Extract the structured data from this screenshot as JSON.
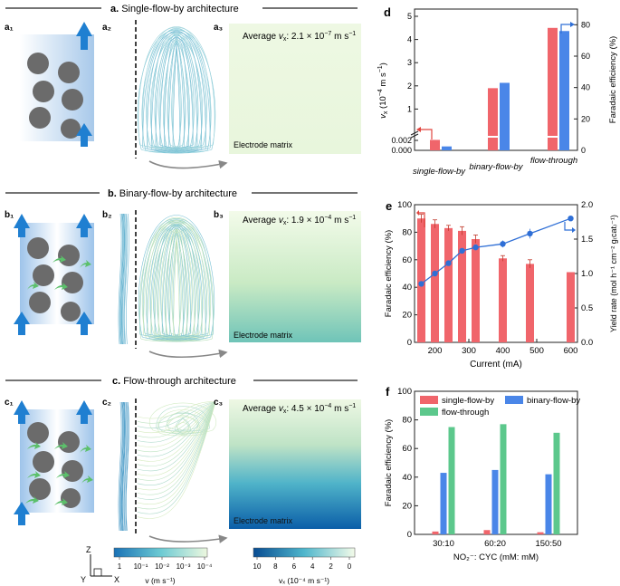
{
  "rows": [
    {
      "letter": "a.",
      "title": "Single-flow-by architecture",
      "sub1": "a₁",
      "sub2": "a₂",
      "sub3": "a₃",
      "avg_prefix": "Average ",
      "avg_symbol": "v",
      "avg_sub": "x",
      "avg_mid": ": 2.1 × 10",
      "avg_exp": "−7",
      "avg_unit": " m s",
      "avg_unit_exp": "−1",
      "matrix_label": "Electrode matrix"
    },
    {
      "letter": "b.",
      "title": "Binary-flow-by architecture",
      "sub1": "b₁",
      "sub2": "b₂",
      "sub3": "b₃",
      "avg_prefix": "Average ",
      "avg_symbol": "v",
      "avg_sub": "x",
      "avg_mid": ": 1.9 × 10",
      "avg_exp": "−4",
      "avg_unit": " m s",
      "avg_unit_exp": "−1",
      "matrix_label": "Electrode matrix"
    },
    {
      "letter": "c.",
      "title": "Flow-through architecture",
      "sub1": "c₁",
      "sub2": "c₂",
      "sub3": "c₃",
      "avg_prefix": "Average ",
      "avg_symbol": "v",
      "avg_sub": "x",
      "avg_mid": ": 4.5 × 10",
      "avg_exp": "−4",
      "avg_unit": " m s",
      "avg_unit_exp": "−1",
      "matrix_label": "Electrode matrix"
    }
  ],
  "axes_icon": {
    "z": "Z",
    "y": "Y",
    "x": "X"
  },
  "colorbar_v": {
    "ticks": [
      "1",
      "10⁻¹",
      "10⁻²",
      "10⁻³",
      "10⁻⁴"
    ],
    "label": "v (m s⁻¹)"
  },
  "colorbar_vx": {
    "ticks": [
      "10",
      "8",
      "6",
      "4",
      "2",
      "0"
    ],
    "label": "vₓ (10⁻⁴ m s⁻¹)"
  },
  "colors": {
    "red": "#f0656b",
    "blue": "#4a86e8",
    "green": "#5cc88c",
    "sphere": "#6b6b6b",
    "arrow": "#1f7fd1"
  },
  "panel_d": {
    "letter": "d",
    "x_labels": [
      "single-flow-by",
      "binary-flow-by",
      "flow-through"
    ]
  },
  "panel_e": {
    "letter": "e"
  },
  "panel_f": {
    "letter": "f"
  },
  "chart_data": [
    {
      "id": "d",
      "type": "bar",
      "categories": [
        "single-flow-by",
        "binary-flow-by",
        "flow-through"
      ],
      "series": [
        {
          "name": "vₓ (10⁻⁴ m s⁻¹)",
          "axis": "left",
          "color": "#f0656b",
          "values": [
            0.0021,
            1.9,
            4.5
          ]
        },
        {
          "name": "Faradaic efficiency (%)",
          "axis": "right",
          "color": "#4a86e8",
          "values": [
            2.5,
            43,
            76
          ]
        }
      ],
      "ylabel": "vₓ (10⁻⁴ m s⁻¹)",
      "ylim": [
        0,
        5
      ],
      "yticks": [
        "0.000",
        "0.002",
        "1",
        "2",
        "3",
        "4",
        "5"
      ],
      "y2label": "Faradaic efficiency (%)",
      "y2lim": [
        0,
        90
      ],
      "y2ticks": [
        "0",
        "20",
        "40",
        "60",
        "80"
      ],
      "axis_break": true
    },
    {
      "id": "e",
      "type": "bar",
      "xlabel": "Current (mA)",
      "xticks": [
        "200",
        "300",
        "400",
        "500",
        "600"
      ],
      "xlim": [
        140,
        620
      ],
      "ylabel": "Faradaic efficiency (%)",
      "ylim": [
        0,
        100
      ],
      "yticks": [
        "0",
        "20",
        "40",
        "60",
        "80",
        "100"
      ],
      "y2label": "Yield rate (mol h⁻¹ cm⁻² g₍cat₎⁻¹)",
      "y2lim": [
        0,
        2.0
      ],
      "y2ticks": [
        "0.0",
        "0.5",
        "1.0",
        "1.5",
        "2.0"
      ],
      "bars": {
        "name": "Faradaic efficiency",
        "color": "#f0656b",
        "x": [
          160,
          200,
          240,
          280,
          320,
          400,
          480,
          600
        ],
        "values": [
          90,
          86,
          83,
          81,
          75,
          61,
          57,
          51
        ],
        "errors": [
          3,
          3,
          2,
          3,
          3,
          2,
          3,
          0
        ]
      },
      "line": {
        "name": "Yield rate",
        "color": "#2f6fd6",
        "x": [
          160,
          200,
          240,
          280,
          320,
          400,
          480,
          600
        ],
        "values": [
          0.85,
          1.0,
          1.15,
          1.33,
          1.38,
          1.43,
          1.58,
          1.8
        ],
        "errors": [
          0.02,
          0.03,
          0.03,
          0.03,
          0.02,
          0.05,
          0.07,
          0.02
        ]
      }
    },
    {
      "id": "f",
      "type": "bar",
      "categories": [
        "30:10",
        "60:20",
        "150:50"
      ],
      "xlabel": "NO₂⁻: CYC (mM: mM)",
      "ylabel": "Faradaic efficiency (%)",
      "ylim": [
        0,
        100
      ],
      "yticks": [
        "0",
        "20",
        "40",
        "60",
        "80",
        "100"
      ],
      "series": [
        {
          "name": "single-flow-by",
          "color": "#f0656b",
          "values": [
            2,
            3,
            1.5
          ]
        },
        {
          "name": "binary-flow-by",
          "color": "#4a86e8",
          "values": [
            43,
            45,
            42
          ]
        },
        {
          "name": "flow-through",
          "color": "#5cc88c",
          "values": [
            75,
            77,
            71
          ]
        }
      ],
      "legend": "top"
    }
  ]
}
